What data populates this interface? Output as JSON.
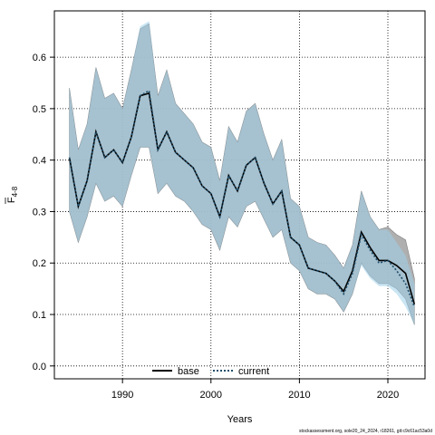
{
  "chart_data": {
    "type": "line",
    "xlabel": "Years",
    "ylabel": {
      "main": "F",
      "sub": "4-8"
    },
    "xlim": [
      1982.3,
      2024.2
    ],
    "ylim": [
      -0.025,
      0.69
    ],
    "xticks": [
      1990,
      2000,
      2010,
      2020
    ],
    "yticks": [
      0.0,
      0.1,
      0.2,
      0.3,
      0.4,
      0.5,
      0.6
    ],
    "ytick_labels": [
      "0.0",
      "0.1",
      "0.2",
      "0.3",
      "0.4",
      "0.5",
      "0.6"
    ],
    "grid": true,
    "legend": {
      "position": "bottom-center",
      "entries": [
        "base",
        "current"
      ]
    },
    "colors": {
      "base_line": "#000000",
      "base_band": "#a6a6a6",
      "current_line": "#1f4e6b",
      "current_band": "#9ecfea"
    },
    "x": [
      1984,
      1985,
      1986,
      1987,
      1988,
      1989,
      1990,
      1991,
      1992,
      1993,
      1994,
      1995,
      1996,
      1997,
      1998,
      1999,
      2000,
      2001,
      2002,
      2003,
      2004,
      2005,
      2006,
      2007,
      2008,
      2009,
      2010,
      2011,
      2012,
      2013,
      2014,
      2015,
      2016,
      2017,
      2018,
      2019,
      2020,
      2021,
      2022,
      2023
    ],
    "series": [
      {
        "name": "base",
        "values": [
          0.405,
          0.31,
          0.36,
          0.455,
          0.405,
          0.42,
          0.395,
          0.445,
          0.525,
          0.53,
          0.42,
          0.455,
          0.415,
          0.4,
          0.385,
          0.35,
          0.335,
          0.29,
          0.37,
          0.34,
          0.39,
          0.405,
          0.355,
          0.315,
          0.34,
          0.25,
          0.235,
          0.19,
          0.185,
          0.18,
          0.165,
          0.145,
          0.185,
          0.26,
          0.23,
          0.205,
          0.205,
          0.195,
          0.18,
          0.12
        ],
        "lower": [
          0.3,
          0.24,
          0.29,
          0.355,
          0.32,
          0.33,
          0.31,
          0.37,
          0.425,
          0.425,
          0.335,
          0.355,
          0.33,
          0.32,
          0.3,
          0.275,
          0.265,
          0.225,
          0.29,
          0.27,
          0.31,
          0.32,
          0.285,
          0.25,
          0.265,
          0.2,
          0.185,
          0.15,
          0.14,
          0.14,
          0.13,
          0.105,
          0.14,
          0.2,
          0.175,
          0.16,
          0.16,
          0.15,
          0.13,
          0.08
        ],
        "upper": [
          0.54,
          0.42,
          0.47,
          0.58,
          0.52,
          0.53,
          0.5,
          0.575,
          0.655,
          0.665,
          0.525,
          0.575,
          0.51,
          0.49,
          0.47,
          0.435,
          0.425,
          0.36,
          0.465,
          0.435,
          0.495,
          0.51,
          0.45,
          0.4,
          0.44,
          0.325,
          0.31,
          0.25,
          0.24,
          0.235,
          0.215,
          0.19,
          0.235,
          0.34,
          0.29,
          0.265,
          0.27,
          0.255,
          0.245,
          0.17
        ]
      },
      {
        "name": "current",
        "values": [
          0.405,
          0.31,
          0.36,
          0.455,
          0.405,
          0.42,
          0.395,
          0.445,
          0.525,
          0.535,
          0.42,
          0.455,
          0.415,
          0.4,
          0.385,
          0.35,
          0.335,
          0.29,
          0.37,
          0.34,
          0.39,
          0.405,
          0.355,
          0.315,
          0.34,
          0.25,
          0.235,
          0.19,
          0.185,
          0.18,
          0.165,
          0.14,
          0.18,
          0.255,
          0.225,
          0.2,
          0.205,
          0.185,
          0.16,
          0.115
        ],
        "lower": [
          0.3,
          0.24,
          0.29,
          0.355,
          0.32,
          0.33,
          0.31,
          0.37,
          0.425,
          0.425,
          0.335,
          0.355,
          0.33,
          0.32,
          0.3,
          0.275,
          0.265,
          0.225,
          0.29,
          0.27,
          0.31,
          0.32,
          0.285,
          0.25,
          0.265,
          0.2,
          0.185,
          0.15,
          0.14,
          0.14,
          0.13,
          0.105,
          0.14,
          0.195,
          0.17,
          0.155,
          0.155,
          0.14,
          0.115,
          0.08
        ],
        "upper": [
          0.54,
          0.42,
          0.47,
          0.58,
          0.52,
          0.53,
          0.5,
          0.575,
          0.66,
          0.67,
          0.525,
          0.575,
          0.51,
          0.49,
          0.47,
          0.435,
          0.425,
          0.36,
          0.465,
          0.435,
          0.495,
          0.51,
          0.45,
          0.4,
          0.44,
          0.325,
          0.31,
          0.25,
          0.24,
          0.235,
          0.215,
          0.19,
          0.235,
          0.34,
          0.29,
          0.265,
          0.265,
          0.24,
          0.215,
          0.16
        ]
      }
    ]
  },
  "footer": "stockassessment.org, sole20_24_2024, r18261, git:c9c61ac53a0d"
}
